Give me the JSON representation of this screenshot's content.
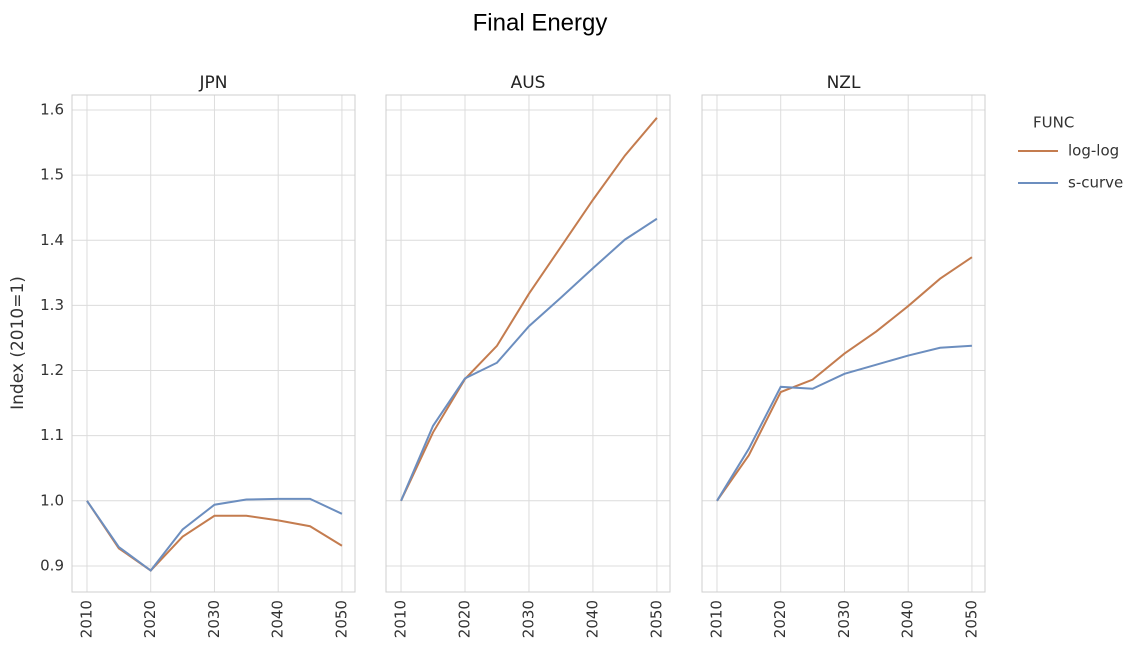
{
  "figure_title": "Final Energy",
  "ylabel": "Index (2010=1)",
  "legend_title": "FUNC",
  "chart_data": [
    {
      "type": "line",
      "title": "JPN",
      "x": [
        2010,
        2015,
        2020,
        2025,
        2030,
        2035,
        2040,
        2045,
        2050
      ],
      "series": [
        {
          "name": "log-log",
          "color": "#c47c4f",
          "values": [
            1.0,
            0.927,
            0.893,
            0.945,
            0.977,
            0.977,
            0.97,
            0.961,
            0.931
          ]
        },
        {
          "name": "s-curve",
          "color": "#6c8ebf",
          "values": [
            1.0,
            0.929,
            0.893,
            0.956,
            0.994,
            1.002,
            1.003,
            1.003,
            0.98
          ]
        }
      ],
      "xlim": [
        2007.65,
        2052.05
      ],
      "ylim": [
        0.86,
        1.623
      ],
      "xticks": [
        2010,
        2020,
        2030,
        2040,
        2050
      ],
      "yticks": [
        0.9,
        {
          "value": 1,
          "label": "1.0"
        },
        1.1,
        1.2,
        1.3,
        1.4,
        1.5,
        1.6
      ],
      "grid": true,
      "show_yticklabels": true
    },
    {
      "type": "line",
      "title": "AUS",
      "x": [
        2010,
        2015,
        2020,
        2025,
        2030,
        2035,
        2040,
        2045,
        2050
      ],
      "series": [
        {
          "name": "log-log",
          "color": "#c47c4f",
          "values": [
            1.0,
            1.105,
            1.187,
            1.238,
            1.318,
            1.39,
            1.462,
            1.53,
            1.588
          ]
        },
        {
          "name": "s-curve",
          "color": "#6c8ebf",
          "values": [
            1.0,
            1.115,
            1.188,
            1.212,
            1.268,
            1.312,
            1.357,
            1.401,
            1.433
          ]
        }
      ],
      "xlim": [
        2007.65,
        2052.05
      ],
      "ylim": [
        0.86,
        1.623
      ],
      "xticks": [
        2010,
        2020,
        2030,
        2040,
        2050
      ],
      "yticks": [
        0.9,
        {
          "value": 1,
          "label": "1.0"
        },
        1.1,
        1.2,
        1.3,
        1.4,
        1.5,
        1.6
      ],
      "grid": true,
      "show_yticklabels": false
    },
    {
      "type": "line",
      "title": "NZL",
      "x": [
        2010,
        2015,
        2020,
        2025,
        2030,
        2035,
        2040,
        2045,
        2050
      ],
      "series": [
        {
          "name": "log-log",
          "color": "#c47c4f",
          "values": [
            1.0,
            1.07,
            1.167,
            1.186,
            1.226,
            1.26,
            1.299,
            1.341,
            1.374
          ]
        },
        {
          "name": "s-curve",
          "color": "#6c8ebf",
          "values": [
            1.0,
            1.08,
            1.175,
            1.172,
            1.195,
            1.209,
            1.223,
            1.235,
            1.238
          ]
        }
      ],
      "xlim": [
        2007.65,
        2052.05
      ],
      "ylim": [
        0.86,
        1.623
      ],
      "xticks": [
        2010,
        2020,
        2030,
        2040,
        2050
      ],
      "yticks": [
        0.9,
        {
          "value": 1,
          "label": "1.0"
        },
        1.1,
        1.2,
        1.3,
        1.4,
        1.5,
        1.6
      ],
      "grid": true,
      "show_yticklabels": false
    }
  ]
}
